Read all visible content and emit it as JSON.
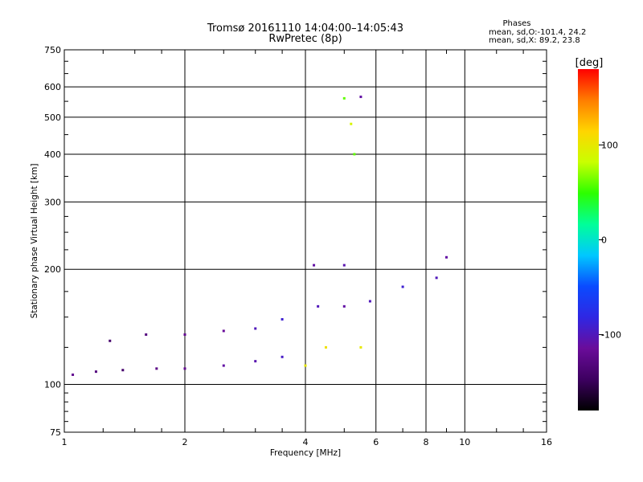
{
  "chart_data": {
    "type": "scatter",
    "title": "Tromsø 20161110 14:04:00–14:05:43",
    "subtitle": "RwPretec (8p)",
    "xlabel": "Frequency [MHz]",
    "ylabel": "Stationary phase Virtual Height [km]",
    "xscale": "log",
    "yscale": "log",
    "xlim": [
      1,
      16
    ],
    "ylim": [
      75,
      750
    ],
    "xticks": [
      "1",
      "2",
      "4",
      "6",
      "8",
      "10",
      "16"
    ],
    "yticks": [
      "75",
      "100",
      "200",
      "300",
      "400",
      "500",
      "600",
      "750"
    ],
    "grid": true,
    "phases_header": "Phases",
    "phases_o": "mean, sd,O:-101.4, 24.2",
    "phases_x": "mean, sd,X: 89.2, 23.8",
    "colorbar": {
      "label": "[deg]",
      "range": [
        -180,
        180
      ],
      "ticks": [
        "100",
        "0",
        "-100"
      ],
      "colors": [
        "#000000",
        "#3d0060",
        "#6a0c9a",
        "#2f27e3",
        "#0a4bff",
        "#00c8ff",
        "#00ff99",
        "#2cff00",
        "#c9ff00",
        "#ffd500",
        "#ff7d00",
        "#ff0000"
      ]
    },
    "series": [
      {
        "values": [
          {
            "x": 1.05,
            "y": 106,
            "p": -120
          },
          {
            "x": 1.2,
            "y": 108,
            "p": -130
          },
          {
            "x": 1.4,
            "y": 109,
            "p": -140
          },
          {
            "x": 1.7,
            "y": 110,
            "p": -125
          },
          {
            "x": 2.0,
            "y": 110,
            "p": -120
          },
          {
            "x": 2.5,
            "y": 112,
            "p": -110
          },
          {
            "x": 3.0,
            "y": 115,
            "p": -105
          },
          {
            "x": 3.5,
            "y": 118,
            "p": -95
          },
          {
            "x": 1.3,
            "y": 130,
            "p": -140
          },
          {
            "x": 1.6,
            "y": 135,
            "p": -130
          },
          {
            "x": 2.0,
            "y": 135,
            "p": -120
          },
          {
            "x": 2.5,
            "y": 138,
            "p": -115
          },
          {
            "x": 3.0,
            "y": 140,
            "p": -100
          },
          {
            "x": 3.5,
            "y": 148,
            "p": -90
          },
          {
            "x": 4.0,
            "y": 112,
            "p": 100
          },
          {
            "x": 4.5,
            "y": 125,
            "p": 105
          },
          {
            "x": 5.5,
            "y": 125,
            "p": 100
          },
          {
            "x": 4.3,
            "y": 160,
            "p": -100
          },
          {
            "x": 5.0,
            "y": 160,
            "p": -110
          },
          {
            "x": 5.8,
            "y": 165,
            "p": -100
          },
          {
            "x": 4.2,
            "y": 205,
            "p": -110
          },
          {
            "x": 5.0,
            "y": 205,
            "p": -105
          },
          {
            "x": 7.0,
            "y": 180,
            "p": -90
          },
          {
            "x": 8.5,
            "y": 190,
            "p": -100
          },
          {
            "x": 9.0,
            "y": 215,
            "p": -110
          },
          {
            "x": 5.3,
            "y": 400,
            "p": 60
          },
          {
            "x": 5.0,
            "y": 560,
            "p": 60
          },
          {
            "x": 5.5,
            "y": 565,
            "p": -110
          },
          {
            "x": 5.2,
            "y": 480,
            "p": 90
          }
        ]
      }
    ]
  }
}
